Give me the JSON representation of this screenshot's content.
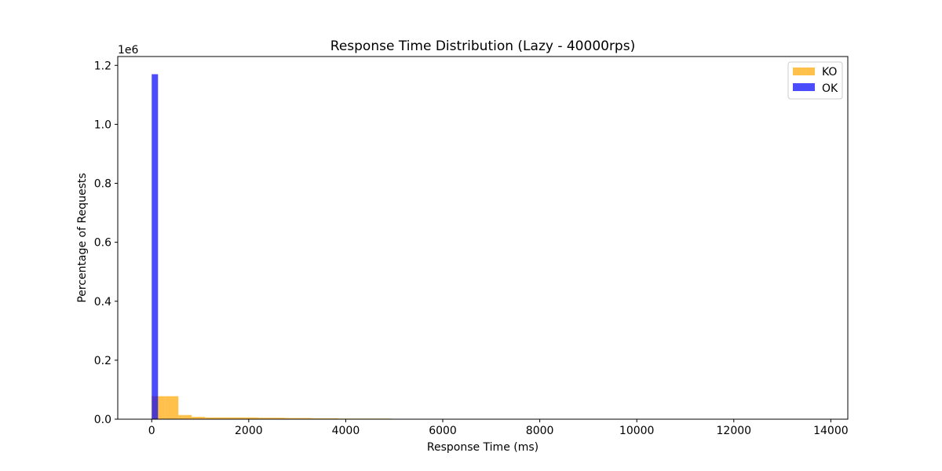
{
  "chart_data": {
    "type": "bar",
    "title": "Response Time Distribution (Lazy - 40000rps)",
    "xlabel": "Response Time (ms)",
    "ylabel": "Percentage of Requests",
    "y_offset_label": "1e6",
    "xlim": [
      -700,
      14350
    ],
    "ylim": [
      0,
      1.23
    ],
    "xticks": [
      0,
      2000,
      4000,
      6000,
      8000,
      10000,
      12000,
      14000
    ],
    "xtick_labels": [
      "0",
      "2000",
      "4000",
      "6000",
      "8000",
      "10000",
      "12000",
      "14000"
    ],
    "yticks": [
      0,
      0.2,
      0.4,
      0.6,
      0.8,
      1.0,
      1.2
    ],
    "ytick_labels": [
      "0.0",
      "0.2",
      "0.4",
      "0.6",
      "0.8",
      "1.0",
      "1.2"
    ],
    "legend_position": "top-right",
    "series": [
      {
        "name": "KO",
        "color": "#ffa500",
        "opacity": 0.7,
        "bin_start": 0,
        "bin_width": 275,
        "values": [
          0.078,
          0.078,
          0.014,
          0.008,
          0.006,
          0.006,
          0.006,
          0.006,
          0.005,
          0.005,
          0.004,
          0.004,
          0.003,
          0.003,
          0.002,
          0.002,
          0.002,
          0.002
        ]
      },
      {
        "name": "OK",
        "color": "#0000ff",
        "opacity": 0.7,
        "bin_start": 0,
        "bin_width": 130,
        "values": [
          1.17
        ]
      }
    ]
  }
}
